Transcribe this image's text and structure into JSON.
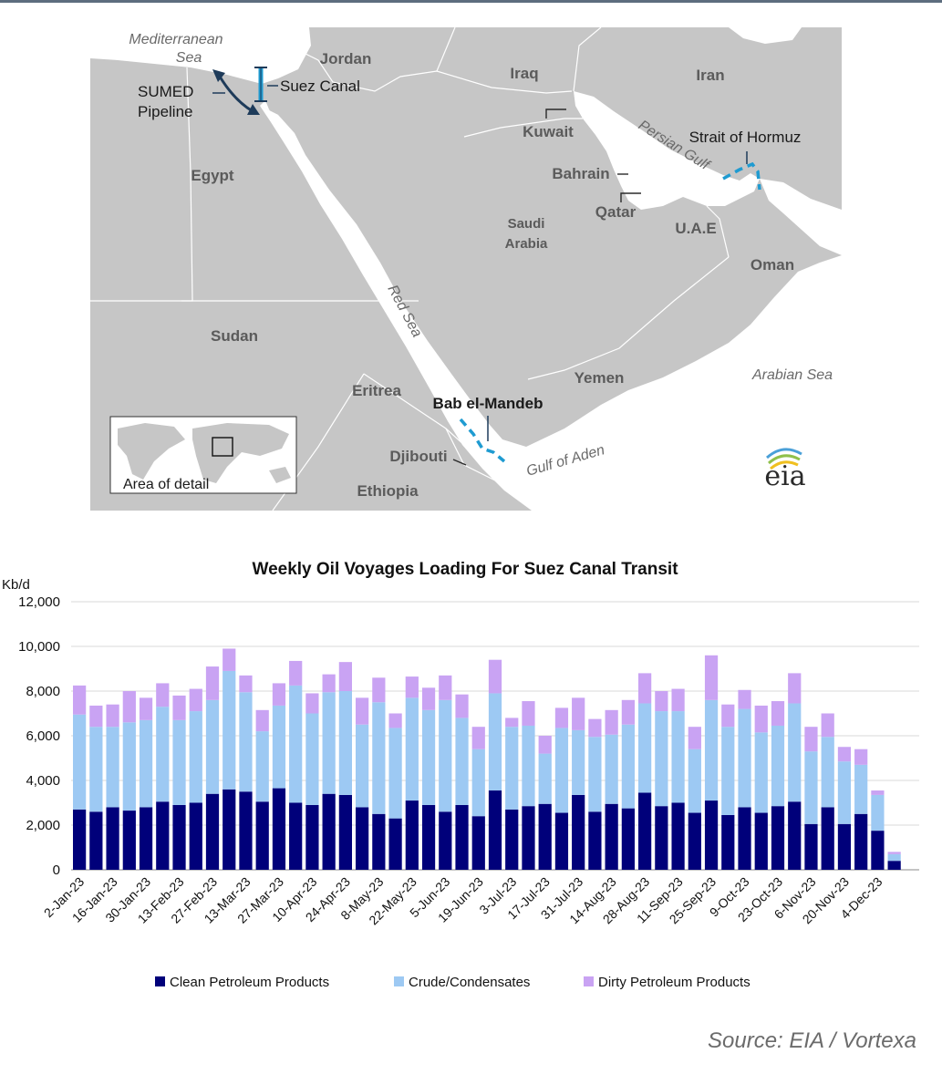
{
  "map": {
    "labels": {
      "mediterranean_1": "Mediterranean",
      "mediterranean_2": "Sea",
      "jordan": "Jordan",
      "iraq": "Iraq",
      "iran": "Iran",
      "sumed_1": "SUMED",
      "sumed_2": "Pipeline",
      "suez_canal": "Suez Canal",
      "kuwait": "Kuwait",
      "persian_gulf": "Persian Gulf",
      "strait_of_hormuz": "Strait of Hormuz",
      "egypt": "Egypt",
      "bahrain": "Bahrain",
      "qatar": "Qatar",
      "saudi_1": "Saudi",
      "saudi_2": "Arabia",
      "uae": "U.A.E",
      "oman": "Oman",
      "red_sea": "Red Sea",
      "sudan": "Sudan",
      "yemen": "Yemen",
      "arabian_sea": "Arabian Sea",
      "eritrea": "Eritrea",
      "bab_el_mandeb": "Bab el-Mandeb",
      "djibouti": "Djibouti",
      "gulf_of_aden": "Gulf of Aden",
      "ethiopia": "Ethiopia",
      "area_of_detail": "Area of detail",
      "eia_logo": "eia"
    },
    "colors": {
      "land": "#c6c6c6",
      "water": "#ffffff",
      "border": "#ffffff",
      "chokepoint": "#1f9bd1",
      "pipeline": "#1e3b5a"
    }
  },
  "chart_data": {
    "type": "bar",
    "stacked": true,
    "title": "Weekly Oil Voyages Loading For Suez Canal Transit",
    "ylabel": "Kb/d",
    "ylim": [
      0,
      12000
    ],
    "yticks": [
      0,
      2000,
      4000,
      6000,
      8000,
      10000,
      12000
    ],
    "ytick_labels": [
      "0",
      "2,000",
      "4,000",
      "6,000",
      "8,000",
      "10,000",
      "12,000"
    ],
    "grid": true,
    "legend_position": "bottom",
    "categories": [
      "2-Jan-23",
      "9-Jan-23",
      "16-Jan-23",
      "23-Jan-23",
      "30-Jan-23",
      "6-Feb-23",
      "13-Feb-23",
      "20-Feb-23",
      "27-Feb-23",
      "6-Mar-23",
      "13-Mar-23",
      "20-Mar-23",
      "27-Mar-23",
      "3-Apr-23",
      "10-Apr-23",
      "17-Apr-23",
      "24-Apr-23",
      "1-May-23",
      "8-May-23",
      "15-May-23",
      "22-May-23",
      "29-May-23",
      "5-Jun-23",
      "12-Jun-23",
      "19-Jun-23",
      "26-Jun-23",
      "3-Jul-23",
      "10-Jul-23",
      "17-Jul-23",
      "24-Jul-23",
      "31-Jul-23",
      "7-Aug-23",
      "14-Aug-23",
      "21-Aug-23",
      "28-Aug-23",
      "4-Sep-23",
      "11-Sep-23",
      "18-Sep-23",
      "25-Sep-23",
      "2-Oct-23",
      "9-Oct-23",
      "16-Oct-23",
      "23-Oct-23",
      "30-Oct-23",
      "6-Nov-23",
      "13-Nov-23",
      "20-Nov-23",
      "27-Nov-23",
      "4-Dec-23",
      "11-Dec-23",
      "18-Dec-23"
    ],
    "tick_labels": [
      "2-Jan-23",
      "16-Jan-23",
      "30-Jan-23",
      "13-Feb-23",
      "27-Feb-23",
      "13-Mar-23",
      "27-Mar-23",
      "10-Apr-23",
      "24-Apr-23",
      "8-May-23",
      "22-May-23",
      "5-Jun-23",
      "19-Jun-23",
      "3-Jul-23",
      "17-Jul-23",
      "31-Jul-23",
      "14-Aug-23",
      "28-Aug-23",
      "11-Sep-23",
      "25-Sep-23",
      "9-Oct-23",
      "23-Oct-23",
      "6-Nov-23",
      "20-Nov-23",
      "4-Dec-23"
    ],
    "series": [
      {
        "name": "Clean Petroleum Products",
        "color": "#00007a",
        "values": [
          2700,
          2600,
          2800,
          2650,
          2800,
          3050,
          2900,
          3000,
          3400,
          3600,
          3500,
          3050,
          3650,
          3000,
          2900,
          3400,
          3350,
          2800,
          2500,
          2300,
          3100,
          2900,
          2600,
          2900,
          2400,
          3550,
          2700,
          2850,
          2950,
          2550,
          3350,
          2600,
          2950,
          2750,
          3450,
          2850,
          3000,
          2550,
          3100,
          2450,
          2800,
          2550,
          2850,
          3050,
          2050,
          2800,
          2050,
          2500,
          1750,
          400,
          0
        ]
      },
      {
        "name": "Crude/Condensates",
        "color": "#9dc9f3",
        "values": [
          4250,
          3800,
          3600,
          3950,
          3900,
          4250,
          3800,
          4100,
          4200,
          5300,
          4450,
          3150,
          3700,
          5250,
          4100,
          4550,
          4650,
          3700,
          5000,
          4050,
          4600,
          4250,
          5000,
          3900,
          3000,
          4350,
          3700,
          3600,
          2250,
          3800,
          2900,
          3350,
          3100,
          3750,
          4000,
          4250,
          4100,
          2850,
          4500,
          3950,
          4400,
          3600,
          3600,
          4400,
          3250,
          3150,
          2800,
          2200,
          1600,
          300,
          0
        ]
      },
      {
        "name": "Dirty Petroleum Products",
        "color": "#c9a3f3",
        "values": [
          1300,
          950,
          1000,
          1400,
          1000,
          1050,
          1100,
          1000,
          1500,
          1000,
          750,
          950,
          1000,
          1100,
          900,
          800,
          1300,
          1200,
          1100,
          650,
          950,
          1000,
          1100,
          1050,
          1000,
          1500,
          400,
          1100,
          800,
          900,
          1450,
          800,
          1100,
          1100,
          1350,
          900,
          1000,
          1000,
          2000,
          1000,
          850,
          1200,
          1100,
          1350,
          1100,
          1050,
          650,
          700,
          200,
          100,
          0
        ]
      }
    ]
  },
  "source": "Source: EIA / Vortexa"
}
